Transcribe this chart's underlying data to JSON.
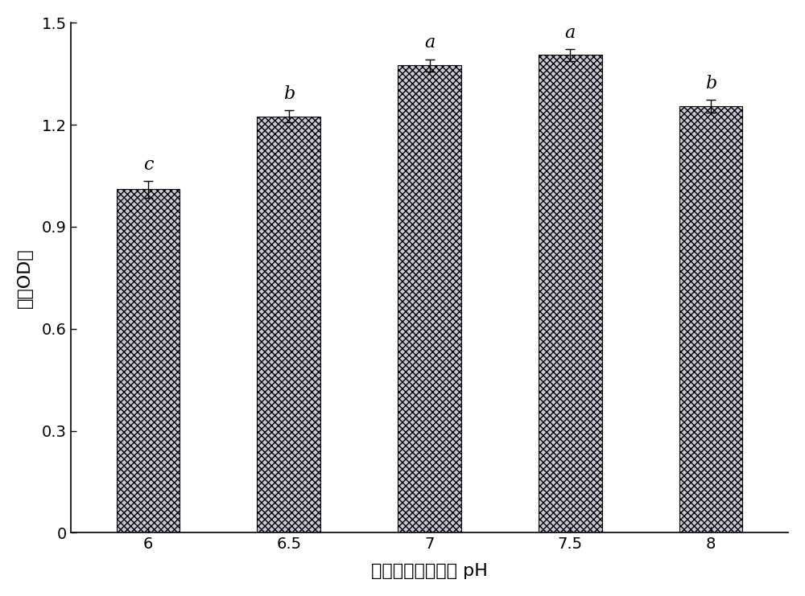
{
  "categories": [
    "6",
    "6.5",
    "7",
    "7.5",
    "8"
  ],
  "values": [
    1.01,
    1.225,
    1.375,
    1.405,
    1.255
  ],
  "errors": [
    0.025,
    0.018,
    0.018,
    0.018,
    0.018
  ],
  "labels": [
    "c",
    "b",
    "a",
    "a",
    "b"
  ],
  "bar_color": "#c8c8d8",
  "bar_edgecolor": "#000000",
  "hatch": "xxxx",
  "ylabel": "菌液OD値",
  "xlabel": "甘薇淥粉废液初始 pH",
  "ylim": [
    0,
    1.5
  ],
  "yticks": [
    0,
    0.3,
    0.6,
    0.9,
    1.2,
    1.5
  ],
  "label_fontsize": 16,
  "tick_fontsize": 14,
  "annot_fontsize": 16,
  "bar_width": 0.45,
  "figsize": [
    10.0,
    7.41
  ],
  "dpi": 100,
  "bar_positions": [
    0,
    1,
    2,
    3,
    4
  ],
  "xlim": [
    -0.55,
    4.55
  ]
}
